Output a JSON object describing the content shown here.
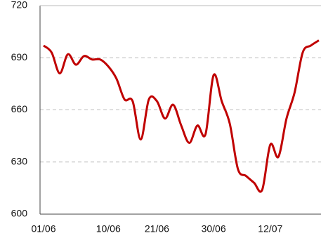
{
  "chart_data": {
    "type": "line",
    "categories": [
      "01/06",
      null,
      null,
      null,
      null,
      null,
      null,
      null,
      "10/06",
      null,
      null,
      null,
      null,
      null,
      "21/06",
      null,
      null,
      null,
      null,
      null,
      null,
      "30/06",
      null,
      null,
      null,
      null,
      null,
      null,
      "12/07",
      null,
      null,
      null,
      null,
      null,
      null
    ],
    "series": [
      {
        "color": "#c00000",
        "values": [
          697,
          693,
          681,
          692,
          686,
          691,
          689,
          689,
          685,
          678,
          666,
          665,
          643,
          666,
          665,
          655,
          663,
          651,
          641,
          651,
          646,
          680,
          665,
          652,
          626,
          622,
          618,
          614,
          640,
          633,
          655,
          670,
          693,
          697,
          700
        ]
      }
    ],
    "ylim": [
      600,
      720
    ],
    "yticks": [
      600,
      630,
      660,
      690,
      720
    ],
    "grid": true
  }
}
